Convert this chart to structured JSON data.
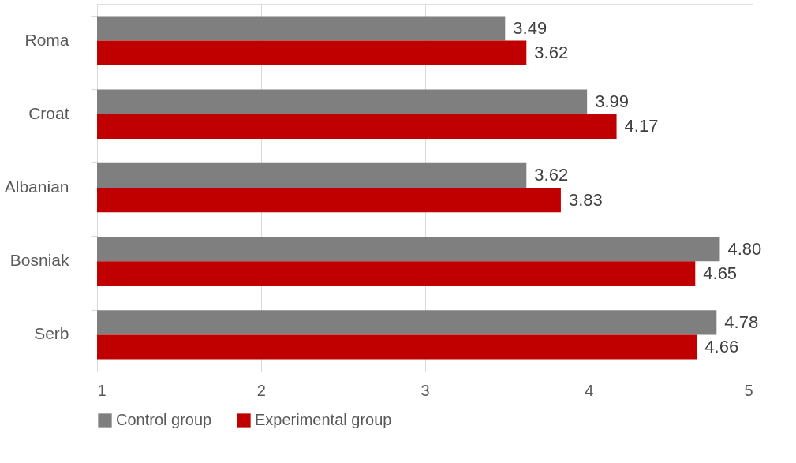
{
  "chart_data": {
    "type": "bar",
    "orientation": "horizontal",
    "categories": [
      "Roma",
      "Croat",
      "Albanian",
      "Bosniak",
      "Serb"
    ],
    "series": [
      {
        "name": "Control group",
        "color": "#7f7f7f",
        "values": [
          3.49,
          3.99,
          3.62,
          4.8,
          4.78
        ],
        "value_labels": [
          "3.49",
          "3.99",
          "3.62",
          "4.80",
          "4.78"
        ]
      },
      {
        "name": "Experimental group",
        "color": "#c00000",
        "values": [
          3.62,
          4.17,
          3.83,
          4.65,
          4.66
        ],
        "value_labels": [
          "3.62",
          "4.17",
          "3.83",
          "4.65",
          "4.66"
        ]
      }
    ],
    "xlim": [
      1,
      5
    ],
    "xticks": [
      1,
      2,
      3,
      4,
      5
    ],
    "grid": "x",
    "legend": "bottom"
  }
}
